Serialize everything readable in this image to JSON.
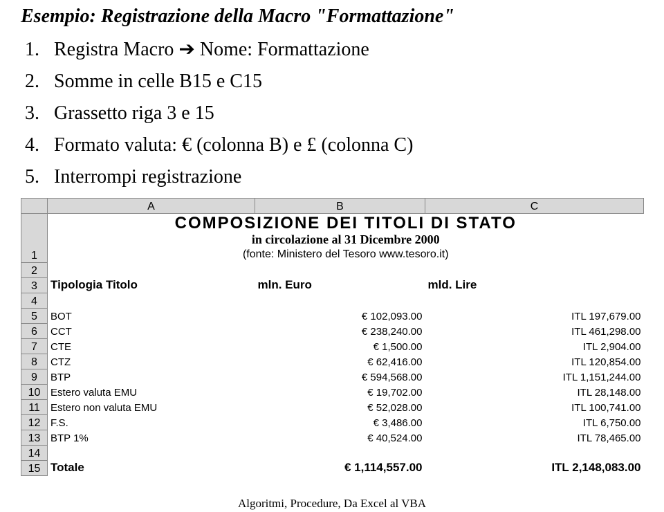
{
  "heading": "Esempio: Registrazione della Macro \"Formattazione\"",
  "steps": [
    {
      "num": "1.",
      "text": "Registra Macro",
      "arrow": "➔",
      "tail": "Nome: Formattazione"
    },
    {
      "num": "2.",
      "text": "Somme in celle B15 e C15"
    },
    {
      "num": "3.",
      "text": "Grassetto riga 3 e 15"
    },
    {
      "num": "4.",
      "text": "Formato valuta: € (colonna B) e £ (colonna C)"
    },
    {
      "num": "5.",
      "text": "Interrompi registrazione"
    }
  ],
  "sheet": {
    "column_letters": [
      "A",
      "B",
      "C"
    ],
    "row_numbers": [
      1,
      2,
      3,
      4,
      5,
      6,
      7,
      8,
      9,
      10,
      11,
      12,
      13,
      14,
      15
    ],
    "row1": {
      "big": "COMPOSIZIONE DEI TITOLI DI STATO",
      "sub1": "in circolazione al 31 Dicembre 2000",
      "sub2": "(fonte: Ministero del Tesoro www.tesoro.it)"
    },
    "header_row": {
      "a": "Tipologia Titolo",
      "b": "mln. Euro",
      "c": "mld. Lire"
    },
    "data": [
      {
        "a": "BOT",
        "b": "€ 102,093.00",
        "c": "ITL 197,679.00"
      },
      {
        "a": "CCT",
        "b": "€ 238,240.00",
        "c": "ITL 461,298.00"
      },
      {
        "a": "CTE",
        "b": "€ 1,500.00",
        "c": "ITL 2,904.00"
      },
      {
        "a": "CTZ",
        "b": "€ 62,416.00",
        "c": "ITL 120,854.00"
      },
      {
        "a": "BTP",
        "b": "€ 594,568.00",
        "c": "ITL 1,151,244.00"
      },
      {
        "a": "Estero valuta EMU",
        "b": "€ 19,702.00",
        "c": "ITL 28,148.00"
      },
      {
        "a": "Estero non valuta EMU",
        "b": "€ 52,028.00",
        "c": "ITL 100,741.00"
      },
      {
        "a": "F.S.",
        "b": "€ 3,486.00",
        "c": "ITL 6,750.00"
      },
      {
        "a": "BTP 1%",
        "b": "€ 40,524.00",
        "c": "ITL 78,465.00"
      }
    ],
    "total_row": {
      "a": "Totale",
      "b": "€ 1,114,557.00",
      "c": "ITL 2,148,083.00"
    }
  },
  "footer": "Algoritmi, Procedure, Da Excel al VBA",
  "colors": {
    "header_bg": "#d8d8d8",
    "border": "#888888",
    "text": "#000000"
  }
}
